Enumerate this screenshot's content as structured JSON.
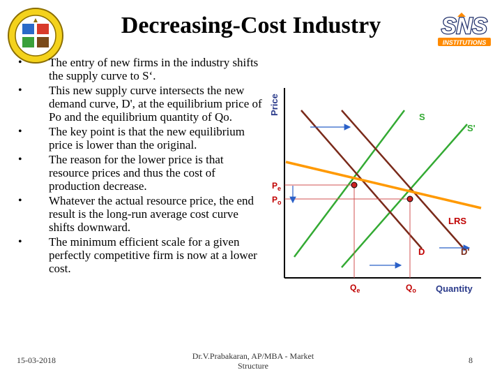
{
  "slide": {
    "title": "Decreasing-Cost Industry",
    "bullets": [
      "The entry of new firms in the industry shifts the supply curve to S‘.",
      "This new supply curve intersects the new demand curve, D', at the equilibrium price of Po and the equilibrium quantity of Qo.",
      "The key point is that the new equilibrium price is lower than the original.",
      " The reason for the lower price is that resource prices and thus the cost of production decrease.",
      "Whatever the actual resource price, the end result is the long-run average cost curve shifts downward.",
      "The minimum efficient scale for a given perfectly competitive firm is now at a lower cost."
    ],
    "bullet_glyph": "•"
  },
  "logos": {
    "right_brand": "SNS",
    "right_sub": "INSTITUTIONS"
  },
  "graph": {
    "y_axis_label": "Price",
    "x_axis_label": "Quantity",
    "curves": {
      "s": "S",
      "s_prime": "S'",
      "d": "D",
      "d_prime": "D'",
      "lrs": "LRS"
    },
    "price_labels": {
      "pe": "P",
      "pe_sub": "e",
      "po": "P",
      "po_sub": "o"
    },
    "quantity_labels": {
      "qe": "Q",
      "qe_sub": "e",
      "qo": "Q",
      "qo_sub": "o"
    },
    "colors": {
      "supply": "#33aa33",
      "demand": "#7a2a1a",
      "lrs": "#ff9900",
      "axis_text": "#2a3a8a",
      "label_red": "#c00000",
      "arrow": "#2a60c8",
      "point": "#cc2222"
    }
  },
  "footer": {
    "date": "15-03-2018",
    "author_line1": "Dr.V.Prabakaran, AP/MBA - Market",
    "author_line2": "Structure",
    "page": "8"
  }
}
